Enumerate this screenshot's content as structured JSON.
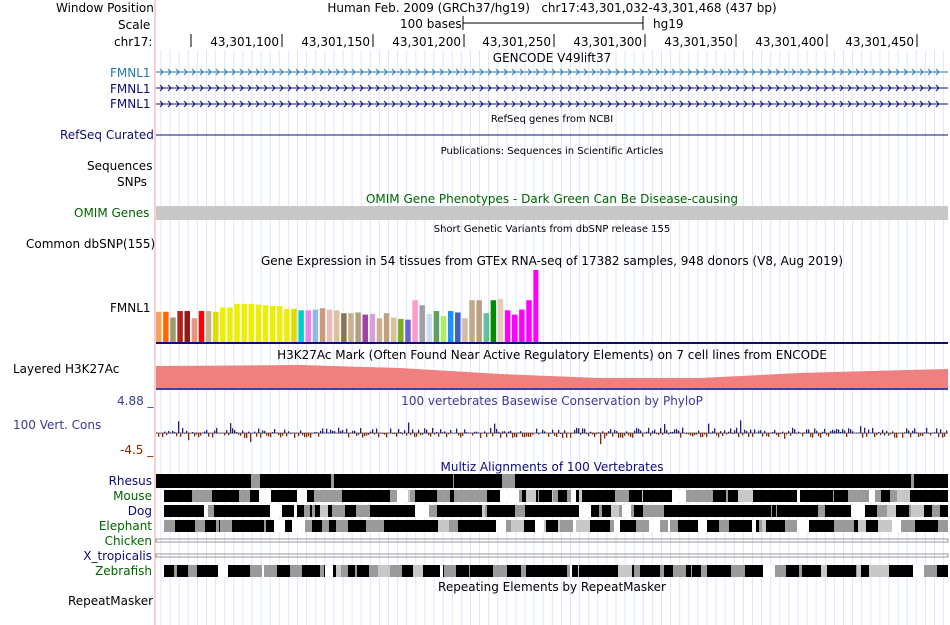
{
  "header": {
    "window_position_label": "Window Position",
    "scale_label": "Scale",
    "chrom_label": "chr17:",
    "position_text": "Human Feb. 2009 (GRCh37/hg19)   chr17:43,301,032-43,301,468 (437 bp)",
    "scale_text": "100 bases",
    "assembly_text": "hg19",
    "ticks": [
      "43,301,100",
      "43,301,150",
      "43,301,200",
      "43,301,250",
      "43,301,300",
      "43,301,350",
      "43,301,400",
      "43,301,450"
    ]
  },
  "tracks": {
    "gencode": {
      "title": "GENCODE V49lift37",
      "genes": [
        "FMNL1",
        "FMNL1",
        "FMNL1"
      ],
      "colors": [
        "#1f77b4",
        "#0c0c78",
        "#0c0c78"
      ]
    },
    "refseq": {
      "label": "RefSeq Curated",
      "title": "RefSeq genes from NCBI",
      "color": "#0c0c78"
    },
    "publications": {
      "label": "Sequences",
      "title": "Publications: Sequences in Scientific Articles"
    },
    "snps": {
      "label": "SNPs"
    },
    "omim": {
      "label": "OMIM Genes",
      "title": "OMIM Gene Phenotypes - Dark Green Can Be Disease-causing",
      "color": "#006400",
      "bar_color": "#c8c8c8"
    },
    "dbsnp": {
      "label": "Common dbSNP(155)",
      "title": "Short Genetic Variants from dbSNP release 155"
    },
    "gtex": {
      "title": "Gene Expression in 54 tissues from GTEx RNA-seq of 17382 samples, 948 donors (V8, Aug 2019)",
      "gene": "FMNL1",
      "values": [
        42,
        42,
        34,
        43,
        43,
        33,
        43,
        43,
        42,
        48,
        48,
        53,
        53,
        53,
        52,
        51,
        50,
        50,
        46,
        46,
        44,
        44,
        45,
        47,
        45,
        44,
        40,
        40,
        41,
        38,
        39,
        33,
        40,
        34,
        32,
        31,
        58,
        51,
        39,
        43,
        36,
        43,
        41,
        33,
        58,
        58,
        40,
        58,
        60,
        44,
        38,
        45,
        58,
        100
      ],
      "colors": [
        "#f4a460",
        "#ff6600",
        "#9b9b6b",
        "#b22222",
        "#8b1a1a",
        "#e9967a",
        "#ff0000",
        "#c8b090",
        "#dcdc00",
        "#eeee00",
        "#eeee00",
        "#eeee00",
        "#eeee00",
        "#eeee00",
        "#eeee00",
        "#eeee00",
        "#eeee00",
        "#eeee00",
        "#eeee00",
        "#dcdc00",
        "#00cccc",
        "#ee82ee",
        "#8fbcdd",
        "#cd9b7a",
        "#eebbbb",
        "#ddc0a0",
        "#8b7355",
        "#c8b090",
        "#b0a080",
        "#a040a0",
        "#d8a0d8",
        "#c8b090",
        "#c0a080",
        "#d8c098",
        "#78ae20",
        "#7060d0",
        "#ff99cc",
        "#a0a0a0",
        "#ccddee",
        "#60a060",
        "#aaee66",
        "#1e90ff",
        "#4060c0",
        "#d8b8a8",
        "#c0a888",
        "#b8a080",
        "#60c0a0",
        "#008b00",
        "#e8c8b8",
        "#ff00ff",
        "#ff00ff",
        "#ff00ff",
        "#ff00ff",
        "#ff00ff"
      ]
    },
    "h3k27ac": {
      "label": "Layered H3K27Ac",
      "title": "H3K27Ac Mark (Often Found Near Active Regulatory Elements) on 7 cell lines from ENCODE",
      "color": "#f08080"
    },
    "phylop": {
      "label": "100 Vert. Cons",
      "title": "100 vertebrates Basewise Conservation by PhyloP",
      "max_label": "4.88 _",
      "min_label": "-4.5 _",
      "pos_color": "#1f1f77",
      "neg_color": "#8b2500"
    },
    "multiz": {
      "title": "Multiz Alignments of 100 Vertebrates",
      "species": [
        "Rhesus",
        "Mouse",
        "Dog",
        "Elephant",
        "Chicken",
        "X_tropicalis",
        "Zebrafish"
      ],
      "colors": [
        "#0c0c78",
        "#006400",
        "#0c0c78",
        "#006400",
        "#006400",
        "#0c0c78",
        "#006400"
      ]
    },
    "repeatmasker": {
      "label": "RepeatMasker",
      "title": "Repeating Elements by RepeatMasker"
    }
  }
}
